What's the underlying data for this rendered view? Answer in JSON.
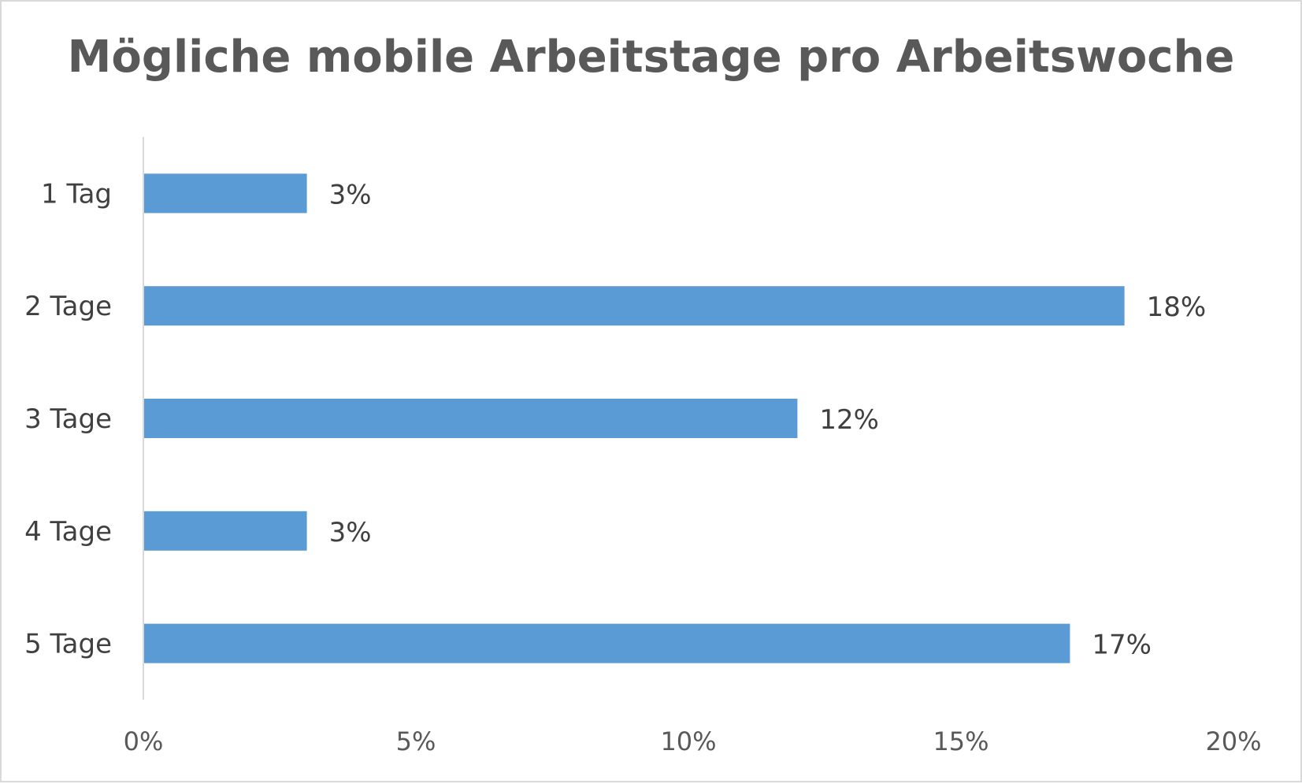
{
  "chart_data": {
    "type": "bar",
    "orientation": "horizontal",
    "title": "Mögliche mobile Arbeitstage pro Arbeitswoche",
    "categories": [
      "1 Tag",
      "2 Tage",
      "3 Tage",
      "4 Tage",
      "5 Tage"
    ],
    "values": [
      3,
      18,
      12,
      3,
      17
    ],
    "data_labels": [
      "3%",
      "18%",
      "12%",
      "3%",
      "17%"
    ],
    "xlim": [
      0,
      20
    ],
    "x_ticks": [
      0,
      5,
      10,
      15,
      20
    ],
    "x_tick_labels": [
      "0%",
      "5%",
      "10%",
      "15%",
      "20%"
    ],
    "xlabel": "",
    "ylabel": "",
    "grid": false,
    "legend": "none",
    "bar_color": "#5b9bd5",
    "axis_color": "#d9d9d9"
  }
}
